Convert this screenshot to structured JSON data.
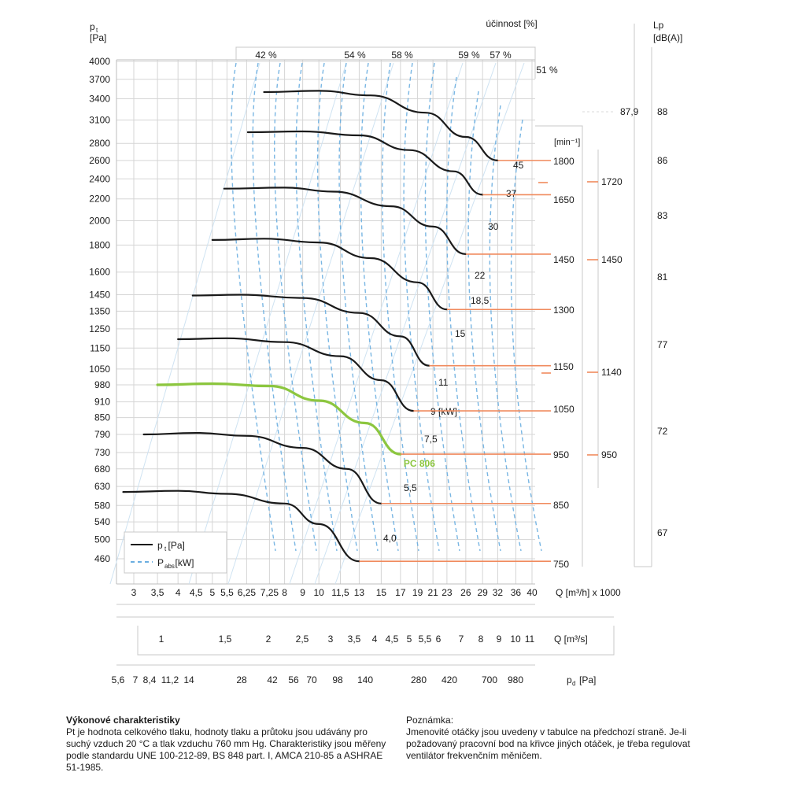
{
  "chart_data": {
    "type": "line",
    "y_axis": {
      "label_main": "p",
      "label_sub": "t",
      "unit": "[Pa]",
      "ticks": [
        4000,
        3700,
        3400,
        3100,
        2800,
        2600,
        2400,
        2200,
        2000,
        1800,
        1600,
        1450,
        1350,
        1250,
        1150,
        1050,
        980,
        910,
        850,
        790,
        730,
        680,
        630,
        580,
        540,
        500,
        460
      ],
      "range": [
        420,
        4050
      ],
      "scale": "log"
    },
    "x_axis": {
      "label": "Q [m³/h] x 1000",
      "ticks": [
        "3",
        "3,5",
        "4",
        "4,5",
        "5",
        "5,5",
        "6,25",
        "7,25",
        "8",
        "9",
        "10",
        "11,5",
        "13",
        "15",
        "17",
        "19",
        "21",
        "23",
        "26",
        "29",
        "32",
        "36",
        "40"
      ],
      "scale": "log"
    },
    "q_ms_axis": {
      "label": "Q [m³/s]",
      "ticks": [
        "1",
        "1,5",
        "2",
        "2,5",
        "3",
        "3,5",
        "4",
        "4,5",
        "5",
        "5,5",
        "6",
        "7",
        "8",
        "9",
        "10",
        "11"
      ]
    },
    "pd_axis": {
      "label_main": "p",
      "label_sub": "d",
      "unit": "[Pa]",
      "ticks": [
        "5,6",
        "7",
        "8,4",
        "11,2",
        "14",
        "28",
        "42",
        "56",
        "70",
        "98",
        "140",
        "280",
        "420",
        "700",
        "980"
      ]
    },
    "efficiency": {
      "title": "účinnost [%]",
      "labels": [
        "42 %",
        "54 %",
        "58 %",
        "59 %",
        "57 %",
        "51 %"
      ]
    },
    "legend": {
      "items": [
        {
          "main": "p",
          "sub": "t",
          "rest": " [Pa]",
          "color": "#1a1a1a",
          "style": "solid"
        },
        {
          "main": "P",
          "sub": "abs",
          "rest": " [kW]",
          "color": "#6aaee0",
          "style": "dashed"
        }
      ],
      "placement": "bottom-left"
    },
    "rpm_header": "[min⁻¹]",
    "rpm_labels": [
      "1800",
      "1650",
      "1450",
      "1300",
      "1150",
      "1050",
      "950",
      "850",
      "750"
    ],
    "rpm_labels2": [
      "1720",
      "1450",
      "1140",
      "950"
    ],
    "power_labels": [
      "45",
      "37",
      "30",
      "22",
      "18,5",
      "15",
      "11",
      "9 [kW]",
      "7,5",
      "5,5",
      "4,0"
    ],
    "lp_axis": {
      "label": "Lp",
      "unit": "[dB(A)]",
      "ticks": [
        "88",
        "86",
        "83",
        "81",
        "77",
        "72",
        "67"
      ],
      "marker_label": "87,9"
    },
    "series": [
      {
        "rpm": 1800,
        "Q": [
          7.0,
          10.0,
          14.0,
          20.0,
          26.0,
          32.0
        ],
        "pt": [
          3500,
          3520,
          3450,
          3200,
          2880,
          2600
        ]
      },
      {
        "rpm": 1650,
        "Q": [
          6.3,
          9.0,
          13.0,
          18.0,
          24.0,
          29.0
        ],
        "pt": [
          2940,
          2950,
          2900,
          2720,
          2480,
          2240
        ]
      },
      {
        "rpm": 1450,
        "Q": [
          5.4,
          8.0,
          11.0,
          16.0,
          21.0,
          26.0
        ],
        "pt": [
          2300,
          2310,
          2270,
          2130,
          1950,
          1730
        ]
      },
      {
        "rpm": 1300,
        "Q": [
          5.0,
          7.0,
          10.0,
          14.0,
          19.0,
          23.0
        ],
        "pt": [
          1840,
          1850,
          1820,
          1700,
          1530,
          1360
        ]
      },
      {
        "rpm": 1150,
        "Q": [
          4.4,
          6.0,
          9.0,
          13.0,
          17.0,
          20.5
        ],
        "pt": [
          1445,
          1450,
          1430,
          1340,
          1210,
          1065
        ]
      },
      {
        "rpm": 1050,
        "Q": [
          4.0,
          5.5,
          8.0,
          11.5,
          15.0,
          18.5
        ],
        "pt": [
          1195,
          1200,
          1180,
          1110,
          1000,
          875
        ]
      },
      {
        "rpm": 950,
        "Q": [
          3.5,
          5.0,
          7.25,
          10.0,
          13.5,
          17.0
        ],
        "pt": [
          980,
          985,
          975,
          915,
          830,
          725
        ],
        "name": "PC 806",
        "highlight": true
      },
      {
        "rpm": 850,
        "Q": [
          3.2,
          4.5,
          6.25,
          9.0,
          12.0,
          15.0
        ],
        "pt": [
          790,
          795,
          785,
          745,
          680,
          585
        ]
      },
      {
        "rpm": 750,
        "Q": [
          2.8,
          4.0,
          5.5,
          8.0,
          10.0,
          13.0
        ],
        "pt": [
          615,
          618,
          610,
          585,
          535,
          455
        ]
      }
    ],
    "power_curves_kw": [
      45,
      37,
      30,
      22,
      18.5,
      15,
      11,
      9,
      7.5,
      5.5,
      4.0
    ],
    "grid": true
  },
  "notes": {
    "left_title": "Výkonové charakteristiky",
    "left_text": "Pt je hodnota celkového tlaku, hodnoty tlaku a průtoku jsou udávány pro suchý vzduch 20 °C a tlak vzduchu 760 mm Hg. Charakteristiky jsou měřeny podle standardu UNE 100-212-89, BS 848 part. I, AMCA 210-85 a ASHRAE 51-1985.",
    "right_title": "Poznámka:",
    "right_text": "Jmenovité otáčky jsou uvedeny v tabulce na předchozí straně. Je-li požadovaný pracovní bod na křivce jiných otáček, je třeba regulovat ventilátor frekvenčním měničem."
  }
}
